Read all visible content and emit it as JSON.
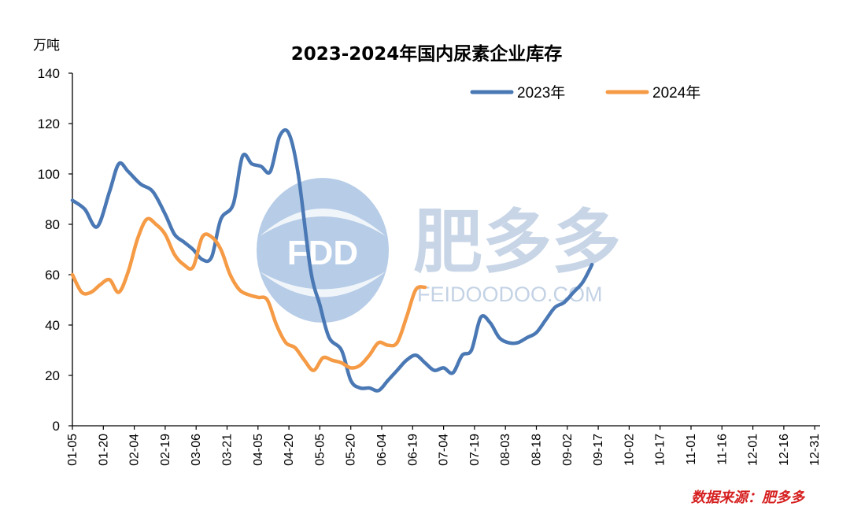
{
  "unit_label": "万吨",
  "source_label": "数据来源：肥多多",
  "watermark": {
    "logo_text": "FDD",
    "brand_text": "肥多多",
    "site_text": "FEIDOODOO.COM"
  },
  "chart_data": {
    "type": "line",
    "title": "2023-2024年国内尿素企业库存",
    "ylabel": "万吨",
    "xlabel": "",
    "ylim": [
      0,
      140
    ],
    "yticks": [
      0,
      20,
      40,
      60,
      80,
      100,
      120,
      140
    ],
    "grid": false,
    "legend_position": "top-right",
    "categories": [
      "01-05",
      "01-20",
      "02-04",
      "02-19",
      "03-06",
      "03-21",
      "04-05",
      "04-20",
      "05-05",
      "05-20",
      "06-04",
      "06-19",
      "07-04",
      "07-19",
      "08-03",
      "08-18",
      "09-02",
      "09-17",
      "10-02",
      "10-17",
      "11-01",
      "11-16",
      "12-01",
      "12-16",
      "12-31"
    ],
    "series": [
      {
        "name": "2023年",
        "color": "#4a78b4",
        "values": [
          [
            0.0,
            89.5
          ],
          [
            0.4,
            86
          ],
          [
            0.8,
            79
          ],
          [
            1.2,
            93
          ],
          [
            1.5,
            104
          ],
          [
            1.8,
            101
          ],
          [
            2.2,
            96
          ],
          [
            2.6,
            93
          ],
          [
            3.0,
            84
          ],
          [
            3.3,
            76
          ],
          [
            3.6,
            73
          ],
          [
            3.9,
            70
          ],
          [
            4.2,
            66
          ],
          [
            4.5,
            67
          ],
          [
            4.8,
            82
          ],
          [
            5.2,
            88
          ],
          [
            5.5,
            107
          ],
          [
            5.8,
            104
          ],
          [
            6.1,
            103
          ],
          [
            6.4,
            101
          ],
          [
            6.7,
            115
          ],
          [
            7.0,
            116
          ],
          [
            7.3,
            100
          ],
          [
            7.7,
            62
          ],
          [
            8.0,
            48
          ],
          [
            8.3,
            35
          ],
          [
            8.7,
            30
          ],
          [
            9.0,
            18
          ],
          [
            9.3,
            15
          ],
          [
            9.6,
            15
          ],
          [
            9.9,
            14
          ],
          [
            10.2,
            18
          ],
          [
            10.5,
            22
          ],
          [
            10.8,
            26
          ],
          [
            11.1,
            28
          ],
          [
            11.4,
            25
          ],
          [
            11.7,
            22
          ],
          [
            12.0,
            23
          ],
          [
            12.3,
            21
          ],
          [
            12.6,
            28
          ],
          [
            12.9,
            30
          ],
          [
            13.2,
            43
          ],
          [
            13.5,
            41
          ],
          [
            13.8,
            35
          ],
          [
            14.1,
            33
          ],
          [
            14.4,
            33
          ],
          [
            14.7,
            35
          ],
          [
            15.0,
            37
          ],
          [
            15.3,
            42
          ],
          [
            15.6,
            47
          ],
          [
            15.9,
            49
          ],
          [
            16.2,
            53
          ],
          [
            16.5,
            57
          ],
          [
            16.8,
            64
          ]
        ]
      },
      {
        "name": "2024年",
        "color": "#f59a45",
        "values": [
          [
            0.0,
            60
          ],
          [
            0.3,
            53
          ],
          [
            0.6,
            53
          ],
          [
            0.9,
            56
          ],
          [
            1.2,
            58
          ],
          [
            1.5,
            53
          ],
          [
            1.8,
            61
          ],
          [
            2.1,
            74
          ],
          [
            2.4,
            82
          ],
          [
            2.7,
            80
          ],
          [
            3.0,
            76
          ],
          [
            3.3,
            68
          ],
          [
            3.6,
            64
          ],
          [
            3.9,
            63
          ],
          [
            4.2,
            75
          ],
          [
            4.5,
            75
          ],
          [
            4.8,
            70
          ],
          [
            5.1,
            60
          ],
          [
            5.4,
            54
          ],
          [
            5.7,
            52
          ],
          [
            6.0,
            51
          ],
          [
            6.3,
            50
          ],
          [
            6.6,
            40
          ],
          [
            6.9,
            33
          ],
          [
            7.2,
            31
          ],
          [
            7.5,
            26
          ],
          [
            7.8,
            22
          ],
          [
            8.1,
            27
          ],
          [
            8.4,
            26
          ],
          [
            8.7,
            25
          ],
          [
            9.0,
            23
          ],
          [
            9.3,
            24
          ],
          [
            9.6,
            28
          ],
          [
            9.9,
            33
          ],
          [
            10.2,
            32
          ],
          [
            10.5,
            33
          ],
          [
            10.8,
            43
          ],
          [
            11.1,
            54
          ],
          [
            11.4,
            55
          ]
        ]
      }
    ]
  }
}
